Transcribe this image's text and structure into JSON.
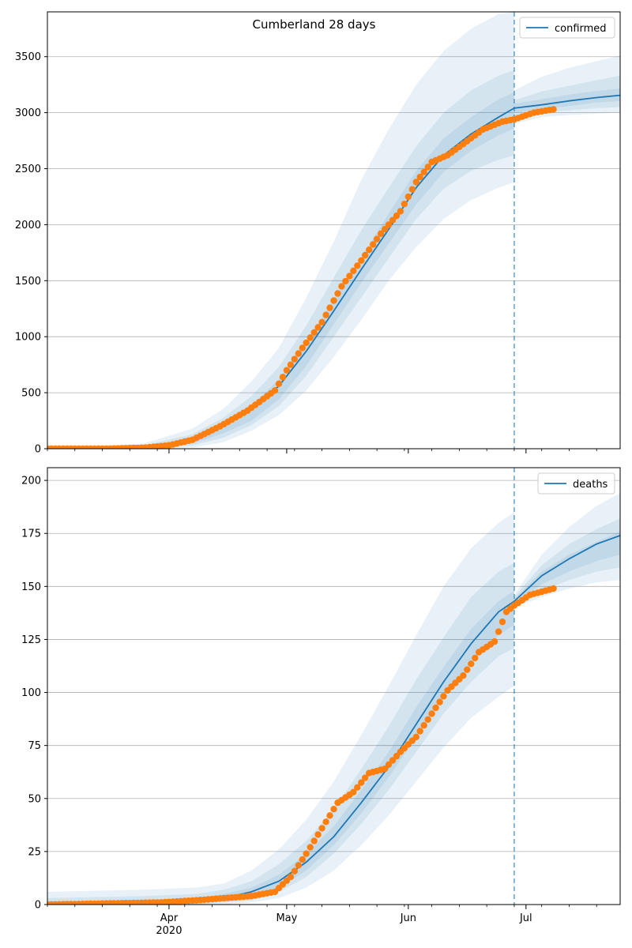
{
  "chart_data": [
    {
      "type": "line",
      "title": "Cumberland 28 days",
      "xlabel": "",
      "ylabel": "",
      "x_start": "2020-03-01",
      "x_end": "2020-07-25",
      "x_ticks": [
        {
          "date": "2020-04-01",
          "label": "Apr",
          "sublabel": "2020"
        },
        {
          "date": "2020-05-01",
          "label": "May"
        },
        {
          "date": "2020-06-01",
          "label": "Jun"
        },
        {
          "date": "2020-07-01",
          "label": "Jul"
        }
      ],
      "ylim": [
        0,
        3900
      ],
      "yticks": [
        0,
        500,
        1000,
        1500,
        2000,
        2500,
        3000,
        3500
      ],
      "grid": true,
      "legend": "top-right",
      "legend_label": "confirmed",
      "forecast_start": "2020-06-28",
      "series": [
        {
          "name": "confirmed",
          "kind": "model",
          "color": "#1f77b4",
          "x": [
            "2020-03-01",
            "2020-03-16",
            "2020-04-01",
            "2020-04-08",
            "2020-04-15",
            "2020-04-22",
            "2020-04-29",
            "2020-05-06",
            "2020-05-13",
            "2020-05-20",
            "2020-05-27",
            "2020-06-03",
            "2020-06-10",
            "2020-06-17",
            "2020-06-24",
            "2020-06-28",
            "2020-07-05",
            "2020-07-12",
            "2020-07-19",
            "2020-07-25"
          ],
          "values": [
            0,
            5,
            25,
            95,
            210,
            360,
            560,
            870,
            1230,
            1600,
            1960,
            2330,
            2620,
            2810,
            2960,
            3040,
            3070,
            3105,
            3135,
            3155
          ]
        },
        {
          "name": "observed",
          "kind": "points",
          "color": "#ff7f0e",
          "x": [
            "2020-03-01",
            "2020-03-16",
            "2020-03-26",
            "2020-04-01",
            "2020-04-07",
            "2020-04-14",
            "2020-04-21",
            "2020-04-28",
            "2020-05-01",
            "2020-05-05",
            "2020-05-10",
            "2020-05-15",
            "2020-05-20",
            "2020-05-25",
            "2020-05-30",
            "2020-06-03",
            "2020-06-07",
            "2020-06-11",
            "2020-06-15",
            "2020-06-20",
            "2020-06-25",
            "2020-06-28",
            "2020-07-03",
            "2020-07-08"
          ],
          "values": [
            0,
            0,
            10,
            30,
            80,
            200,
            340,
            520,
            700,
            900,
            1130,
            1450,
            1680,
            1920,
            2120,
            2380,
            2560,
            2620,
            2720,
            2850,
            2920,
            2940,
            3000,
            3030
          ]
        }
      ],
      "bands": {
        "x": [
          "2020-03-01",
          "2020-03-25",
          "2020-04-07",
          "2020-04-15",
          "2020-04-22",
          "2020-04-29",
          "2020-05-06",
          "2020-05-13",
          "2020-05-20",
          "2020-05-27",
          "2020-06-03",
          "2020-06-10",
          "2020-06-17",
          "2020-06-24",
          "2020-06-28"
        ],
        "outer": {
          "lower": [
            0,
            0,
            10,
            60,
            160,
            300,
            520,
            820,
            1150,
            1500,
            1800,
            2050,
            2220,
            2330,
            2380
          ],
          "upper": [
            10,
            40,
            180,
            360,
            600,
            900,
            1350,
            1850,
            2400,
            2850,
            3250,
            3550,
            3750,
            3880,
            3900
          ]
        },
        "mid": {
          "lower": [
            0,
            5,
            30,
            100,
            210,
            380,
            650,
            1000,
            1350,
            1700,
            2050,
            2320,
            2480,
            2580,
            2620
          ],
          "upper": [
            5,
            25,
            130,
            280,
            470,
            730,
            1100,
            1530,
            1950,
            2330,
            2700,
            3000,
            3200,
            3330,
            3380
          ]
        },
        "inner": {
          "lower": [
            0,
            8,
            45,
            140,
            250,
            440,
            740,
            1110,
            1480,
            1830,
            2180,
            2470,
            2660,
            2800,
            2860
          ],
          "upper": [
            3,
            18,
            90,
            220,
            380,
            620,
            950,
            1330,
            1710,
            2100,
            2480,
            2770,
            2960,
            3120,
            3180
          ]
        },
        "forecast_x": [
          "2020-06-28",
          "2020-07-05",
          "2020-07-12",
          "2020-07-19",
          "2020-07-25"
        ],
        "forecast_outer": {
          "lower": [
            2900,
            2960,
            2980,
            2990,
            3000
          ],
          "upper": [
            3200,
            3320,
            3400,
            3460,
            3510
          ]
        },
        "forecast_mid": {
          "lower": [
            2960,
            3000,
            3020,
            3040,
            3050
          ],
          "upper": [
            3110,
            3190,
            3240,
            3290,
            3330
          ]
        },
        "forecast_inner": {
          "lower": [
            3000,
            3030,
            3060,
            3090,
            3105
          ],
          "upper": [
            3080,
            3120,
            3160,
            3195,
            3215
          ]
        }
      }
    },
    {
      "type": "line",
      "title": "",
      "xlabel": "",
      "ylabel": "",
      "x_start": "2020-03-01",
      "x_end": "2020-07-25",
      "x_ticks": [
        {
          "date": "2020-04-01",
          "label": "Apr",
          "sublabel": "2020"
        },
        {
          "date": "2020-05-01",
          "label": "May"
        },
        {
          "date": "2020-06-01",
          "label": "Jun"
        },
        {
          "date": "2020-07-01",
          "label": "Jul"
        }
      ],
      "ylim": [
        0,
        206
      ],
      "yticks": [
        0,
        25,
        50,
        75,
        100,
        125,
        150,
        175,
        200
      ],
      "grid": true,
      "legend": "top-right",
      "legend_label": "deaths",
      "forecast_start": "2020-06-28",
      "series": [
        {
          "name": "deaths",
          "kind": "model",
          "color": "#1f77b4",
          "x": [
            "2020-03-01",
            "2020-03-25",
            "2020-04-08",
            "2020-04-15",
            "2020-04-22",
            "2020-04-29",
            "2020-05-06",
            "2020-05-13",
            "2020-05-20",
            "2020-05-27",
            "2020-06-03",
            "2020-06-10",
            "2020-06-17",
            "2020-06-24",
            "2020-06-28",
            "2020-07-05",
            "2020-07-12",
            "2020-07-19",
            "2020-07-25"
          ],
          "values": [
            0,
            0,
            1,
            3,
            6,
            11,
            20,
            32,
            48,
            65,
            85,
            105,
            123,
            138,
            143,
            155,
            163,
            170,
            174
          ]
        },
        {
          "name": "observed",
          "kind": "points",
          "color": "#ff7f0e",
          "x": [
            "2020-03-01",
            "2020-03-30",
            "2020-04-08",
            "2020-04-15",
            "2020-04-22",
            "2020-04-28",
            "2020-05-02",
            "2020-05-06",
            "2020-05-10",
            "2020-05-14",
            "2020-05-18",
            "2020-05-22",
            "2020-05-26",
            "2020-05-30",
            "2020-06-03",
            "2020-06-07",
            "2020-06-11",
            "2020-06-15",
            "2020-06-19",
            "2020-06-23",
            "2020-06-26",
            "2020-06-28",
            "2020-07-02",
            "2020-07-08"
          ],
          "values": [
            0,
            1,
            2,
            3,
            4,
            6,
            13,
            24,
            36,
            48,
            53,
            62,
            64,
            72,
            79,
            90,
            101,
            108,
            119,
            124,
            138,
            141,
            146,
            149
          ]
        }
      ],
      "bands": {
        "x": [
          "2020-03-01",
          "2020-03-25",
          "2020-04-08",
          "2020-04-15",
          "2020-04-22",
          "2020-04-29",
          "2020-05-06",
          "2020-05-13",
          "2020-05-20",
          "2020-05-27",
          "2020-06-03",
          "2020-06-10",
          "2020-06-17",
          "2020-06-24",
          "2020-06-28"
        ],
        "outer": {
          "lower": [
            0,
            0,
            0,
            0,
            1,
            3,
            8,
            16,
            28,
            42,
            58,
            74,
            88,
            98,
            103
          ],
          "upper": [
            6,
            7,
            8,
            10,
            16,
            26,
            40,
            58,
            80,
            103,
            127,
            150,
            168,
            180,
            185
          ]
        },
        "mid": {
          "lower": [
            0,
            0,
            0,
            1,
            2,
            6,
            13,
            24,
            38,
            54,
            72,
            90,
            105,
            117,
            121
          ],
          "upper": [
            3,
            4,
            5,
            7,
            11,
            19,
            30,
            45,
            64,
            84,
            106,
            126,
            145,
            157,
            161
          ]
        },
        "inner": {
          "lower": [
            0,
            0,
            1,
            2,
            4,
            8,
            16,
            28,
            43,
            60,
            79,
            98,
            114,
            127,
            132
          ],
          "upper": [
            1,
            2,
            3,
            5,
            8,
            14,
            24,
            37,
            54,
            72,
            93,
            112,
            130,
            143,
            148
          ]
        },
        "forecast_x": [
          "2020-06-28",
          "2020-07-05",
          "2020-07-12",
          "2020-07-19",
          "2020-07-25"
        ],
        "forecast_outer": {
          "lower": [
            140,
            145,
            149,
            152,
            153
          ],
          "upper": [
            146,
            165,
            178,
            188,
            194
          ]
        },
        "forecast_mid": {
          "lower": [
            141,
            148,
            153,
            157,
            159
          ],
          "upper": [
            145,
            160,
            170,
            177,
            182
          ]
        },
        "forecast_inner": {
          "lower": [
            142,
            151,
            157,
            162,
            165
          ],
          "upper": [
            144,
            157,
            165,
            171,
            176
          ]
        }
      }
    }
  ]
}
